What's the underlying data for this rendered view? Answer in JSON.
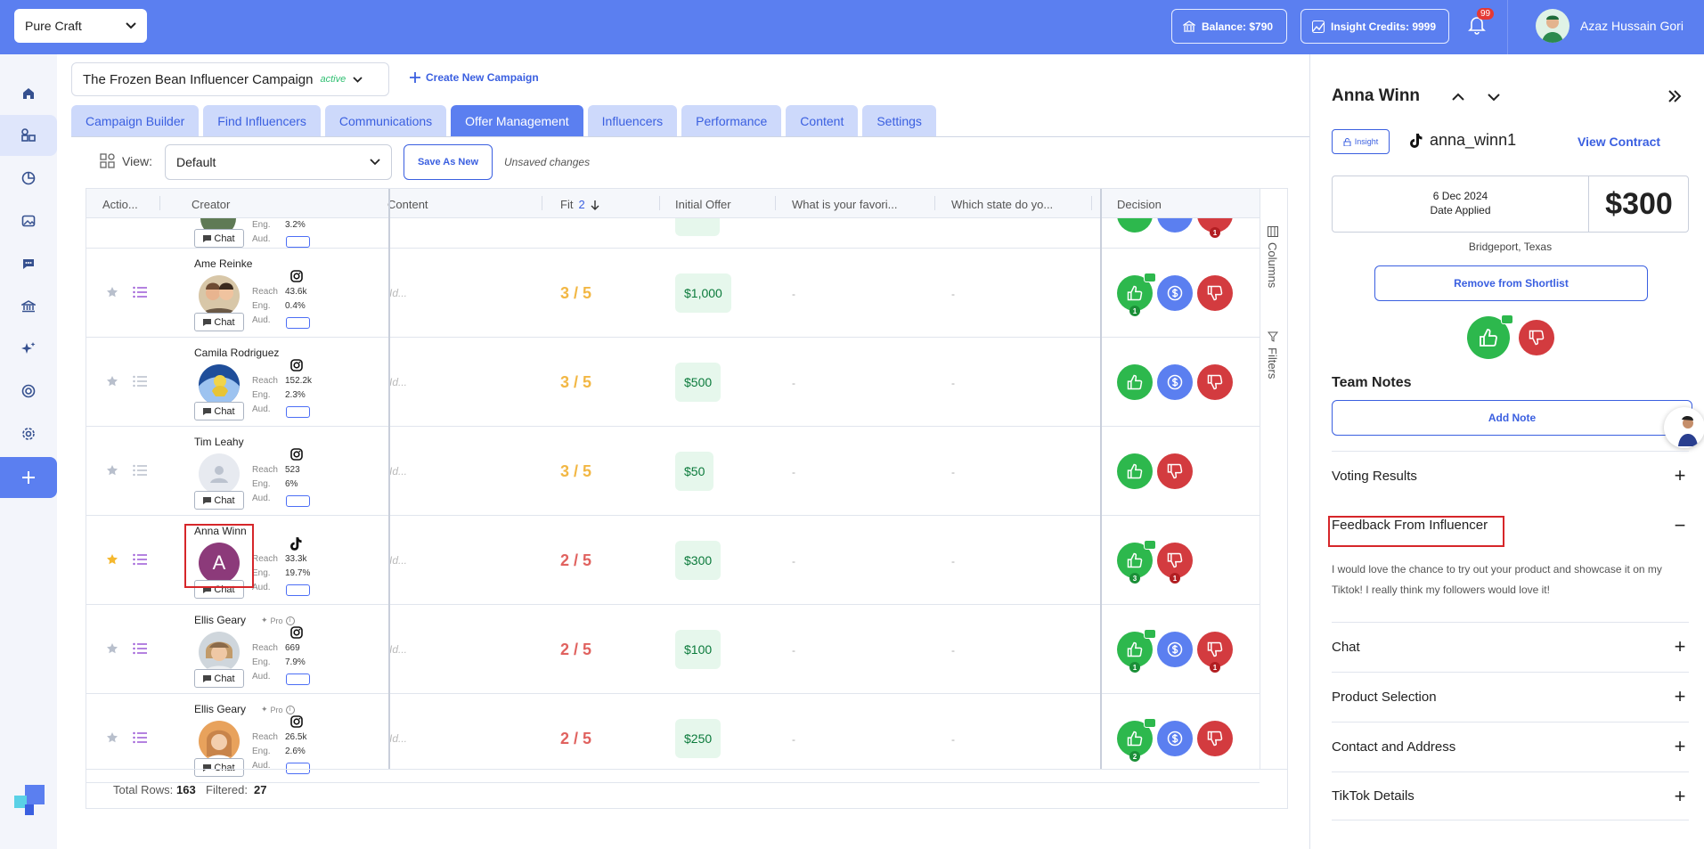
{
  "topbar": {
    "brand": "Pure Craft",
    "balance": "Balance: $790",
    "credits": "Insight Credits: 9999",
    "notifications": "99",
    "user_name": "Azaz Hussain Gori"
  },
  "campaign": {
    "name": "The Frozen Bean Influencer Campaign",
    "status": "active",
    "create_label": "Create New Campaign"
  },
  "tabs": [
    "Campaign Builder",
    "Find Influencers",
    "Communications",
    "Offer Management",
    "Influencers",
    "Performance",
    "Content",
    "Settings"
  ],
  "viewbar": {
    "label": "View:",
    "selected": "Default",
    "save_label": "Save As New",
    "unsaved": "Unsaved changes"
  },
  "table": {
    "headers": {
      "actions": "Actio...",
      "creator": "Creator",
      "content": "Content",
      "fit": "Fit",
      "fit_badge": "2",
      "offer": "Initial Offer",
      "q1": "What is your favori...",
      "q2": "Which state do yo...",
      "decision": "Decision"
    },
    "side_tabs": [
      "Columns",
      "Filters"
    ],
    "partial_row": {
      "eng": "3.2%",
      "chat": "Chat",
      "eng_label": "Eng.",
      "aud_label": "Aud.",
      "badge": "1"
    },
    "rows": [
      {
        "name": "Ame Reinke",
        "platform": "instagram",
        "reach": "43.6k",
        "eng": "0.4%",
        "fit": "3 / 5",
        "fit_color": "#f2b744",
        "offer": "$1,000",
        "content": "Id...",
        "q1": "-",
        "q2": "-",
        "starred": false,
        "like_count": "1",
        "neg_count": ""
      },
      {
        "name": "Camila Rodriguez",
        "platform": "instagram",
        "reach": "152.2k",
        "eng": "2.3%",
        "fit": "3 / 5",
        "fit_color": "#f2b744",
        "offer": "$500",
        "content": "Id...",
        "q1": "-",
        "q2": "-",
        "starred": false,
        "like_count": "",
        "neg_count": ""
      },
      {
        "name": "Tim Leahy",
        "platform": "instagram",
        "reach": "523",
        "eng": "6%",
        "fit": "3 / 5",
        "fit_color": "#f2b744",
        "offer": "$50",
        "content": "Id...",
        "q1": "-",
        "q2": "-",
        "starred": false,
        "like_count": "",
        "neg_count": ""
      },
      {
        "name": "Anna Winn",
        "platform": "tiktok",
        "reach": "33.3k",
        "eng": "19.7%",
        "fit": "2 / 5",
        "fit_color": "#e0625f",
        "offer": "$300",
        "content": "Id...",
        "q1": "-",
        "q2": "-",
        "starred": true,
        "like_count": "3",
        "neg_count": "1",
        "avatar_letter": "A"
      },
      {
        "name": "Ellis Geary",
        "pro": "Pro",
        "platform": "instagram",
        "reach": "669",
        "eng": "7.9%",
        "fit": "2 / 5",
        "fit_color": "#e0625f",
        "offer": "$100",
        "content": "Id...",
        "q1": "-",
        "q2": "-",
        "starred": false,
        "like_count": "1",
        "neg_count": "1"
      },
      {
        "name": "Ellis Geary",
        "pro": "Pro",
        "platform": "instagram",
        "reach": "26.5k",
        "eng": "2.6%",
        "fit": "2 / 5",
        "fit_color": "#e0625f",
        "offer": "$250",
        "content": "Id...",
        "q1": "-",
        "q2": "-",
        "starred": false,
        "like_count": "2",
        "neg_count": ""
      }
    ],
    "row_labels": {
      "reach": "Reach",
      "eng": "Eng.",
      "aud": "Aud.",
      "chat": "Chat"
    },
    "footer": {
      "total_label": "Total Rows:",
      "total": "163",
      "filtered_label": "Filtered:",
      "filtered": "27"
    }
  },
  "panel": {
    "name": "Anna Winn",
    "insight_tag": "Insight",
    "handle": "anna_winn1",
    "view_contract": "View Contract",
    "date": "6 Dec 2024",
    "date_label": "Date Applied",
    "price": "$300",
    "location": "Bridgeport, Texas",
    "remove_label": "Remove from Shortlist",
    "team_notes": "Team Notes",
    "add_note": "Add Note",
    "sections": {
      "voting": "Voting Results",
      "feedback": "Feedback From Influencer",
      "chat": "Chat",
      "product": "Product Selection",
      "contact": "Contact and Address",
      "tiktok": "TikTok Details"
    },
    "feedback_text": "I would love the chance to try out your product and showcase it on my Tiktok! I really think my followers would love it!"
  },
  "colors": {
    "accent": "#5b7ff0",
    "like": "#2db84d",
    "dislike": "#d33b3f",
    "highlight": "#d6262a"
  }
}
